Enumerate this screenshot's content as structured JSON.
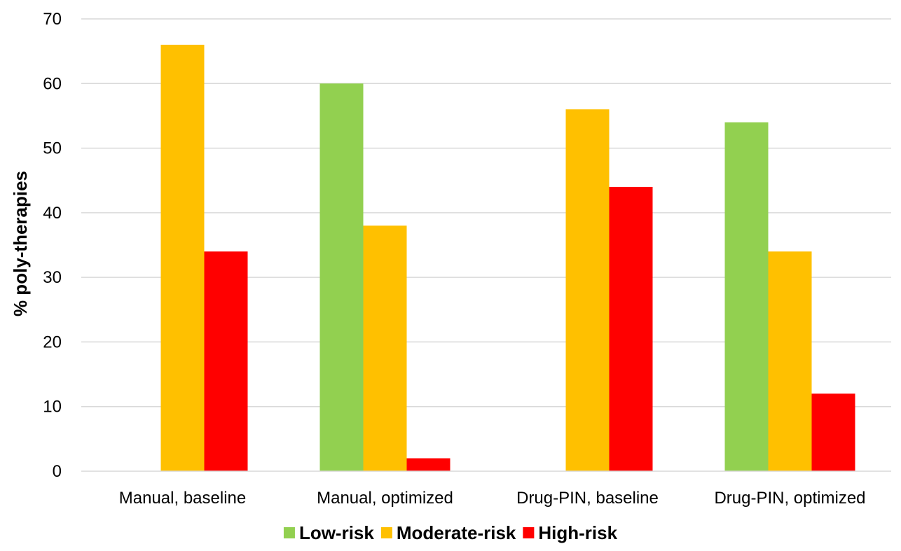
{
  "chart_data": {
    "type": "bar",
    "categories": [
      "Manual, baseline",
      "Manual, optimized",
      "Drug-PIN, baseline",
      "Drug-PIN, optimized"
    ],
    "series": [
      {
        "name": "Low-risk",
        "color": "#92d050",
        "values": [
          0,
          60,
          0,
          54
        ]
      },
      {
        "name": "Moderate-risk",
        "color": "#ffc000",
        "values": [
          66,
          38,
          56,
          34
        ]
      },
      {
        "name": "High-risk",
        "color": "#ff0000",
        "values": [
          34,
          2,
          44,
          12
        ]
      }
    ],
    "title": "",
    "xlabel": "",
    "ylabel": "% poly-therapies",
    "ylim": [
      0,
      70
    ],
    "yticks": [
      "0",
      "10",
      "20",
      "30",
      "40",
      "50",
      "60",
      "70"
    ],
    "grid": true,
    "legend_position": "bottom"
  }
}
